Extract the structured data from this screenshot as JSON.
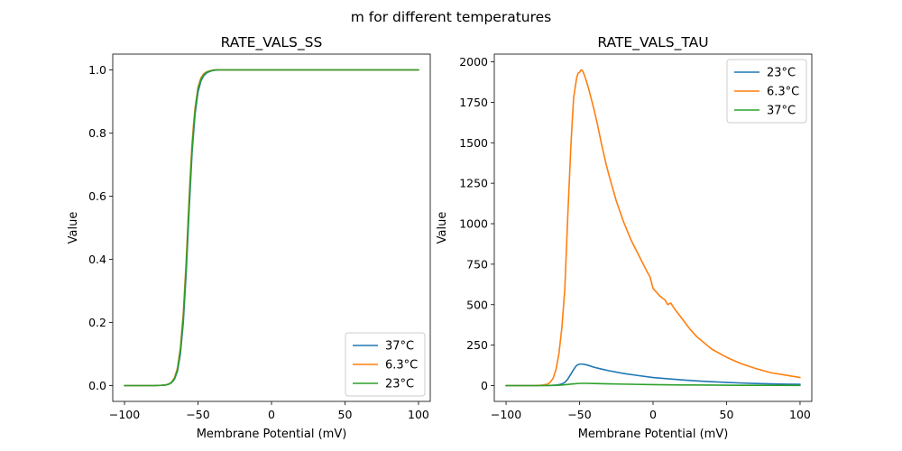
{
  "chart_data": {
    "suptitle": "m for different temperatures",
    "charts": [
      {
        "type": "line",
        "title": "RATE_VALS_SS",
        "xlabel": "Membrane Potential (mV)",
        "ylabel": "Value",
        "xlim": [
          -108,
          108
        ],
        "ylim": [
          -0.05,
          1.05
        ],
        "xticks": [
          -100,
          -50,
          0,
          50,
          100
        ],
        "xtick_labels": [
          "−100",
          "−50",
          "0",
          "50",
          "100"
        ],
        "yticks": [
          0.0,
          0.2,
          0.4,
          0.6,
          0.8,
          1.0
        ],
        "ytick_labels": [
          "0.0",
          "0.2",
          "0.4",
          "0.6",
          "0.8",
          "1.0"
        ],
        "legend_position": "lower-right",
        "series": [
          {
            "name": "37°C",
            "color": "#1f77b4",
            "x": [
              -100,
              -80,
              -75,
              -72,
              -70,
              -68,
              -66,
              -64,
              -62,
              -60,
              -58,
              -56,
              -55,
              -54,
              -53,
              -52,
              -50,
              -48,
              -46,
              -44,
              -42,
              -40,
              -38,
              -35,
              -30,
              -20,
              0,
              50,
              100
            ],
            "y": [
              0.0,
              0.0,
              0.001,
              0.002,
              0.004,
              0.009,
              0.02,
              0.045,
              0.1,
              0.2,
              0.36,
              0.56,
              0.65,
              0.74,
              0.8,
              0.86,
              0.93,
              0.965,
              0.982,
              0.991,
              0.995,
              0.998,
              0.999,
              1.0,
              1.0,
              1.0,
              1.0,
              1.0,
              1.0
            ]
          },
          {
            "name": "6.3°C",
            "color": "#ff7f0e",
            "x": [
              -100,
              -80,
              -75,
              -72,
              -70,
              -68,
              -66,
              -64,
              -62,
              -60,
              -58,
              -56,
              -55,
              -54,
              -53,
              -52,
              -50,
              -48,
              -46,
              -44,
              -42,
              -40,
              -38,
              -35,
              -30,
              -20,
              0,
              50,
              100
            ],
            "y": [
              0.0,
              0.0,
              0.001,
              0.002,
              0.005,
              0.011,
              0.025,
              0.055,
              0.12,
              0.23,
              0.4,
              0.6,
              0.69,
              0.77,
              0.83,
              0.88,
              0.945,
              0.975,
              0.988,
              0.994,
              0.997,
              0.999,
              1.0,
              1.0,
              1.0,
              1.0,
              1.0,
              1.0,
              1.0
            ]
          },
          {
            "name": "23°C",
            "color": "#2ca02c",
            "x": [
              -100,
              -80,
              -75,
              -72,
              -70,
              -68,
              -66,
              -64,
              -62,
              -60,
              -58,
              -56,
              -55,
              -54,
              -53,
              -52,
              -50,
              -48,
              -46,
              -44,
              -42,
              -40,
              -38,
              -35,
              -30,
              -20,
              0,
              50,
              100
            ],
            "y": [
              0.0,
              0.0,
              0.001,
              0.002,
              0.0045,
              0.01,
              0.022,
              0.05,
              0.11,
              0.215,
              0.38,
              0.58,
              0.67,
              0.755,
              0.815,
              0.87,
              0.94,
              0.97,
              0.985,
              0.993,
              0.996,
              0.999,
              1.0,
              1.0,
              1.0,
              1.0,
              1.0,
              1.0,
              1.0
            ]
          }
        ]
      },
      {
        "type": "line",
        "title": "RATE_VALS_TAU",
        "xlabel": "Membrane Potential (mV)",
        "ylabel": "Value",
        "xlim": [
          -108,
          108
        ],
        "ylim": [
          -97.5,
          2047.5
        ],
        "xticks": [
          -100,
          -50,
          0,
          50,
          100
        ],
        "xtick_labels": [
          "−100",
          "−50",
          "0",
          "50",
          "100"
        ],
        "yticks": [
          0,
          250,
          500,
          750,
          1000,
          1250,
          1500,
          1750,
          2000
        ],
        "ytick_labels": [
          "0",
          "250",
          "500",
          "750",
          "1000",
          "1250",
          "1500",
          "1750",
          "2000"
        ],
        "legend_position": "top-right",
        "series": [
          {
            "name": "23°C",
            "color": "#1f77b4",
            "x": [
              -100,
              -80,
              -70,
              -65,
              -62,
              -60,
              -58,
              -56,
              -54,
              -52,
              -50,
              -48,
              -46,
              -44,
              -40,
              -35,
              -30,
              -20,
              -10,
              0,
              10,
              20,
              30,
              40,
              50,
              60,
              70,
              80,
              90,
              100
            ],
            "y": [
              0,
              0,
              1,
              4,
              10,
              20,
              40,
              70,
              100,
              125,
              133,
              133,
              130,
              125,
              113,
              102,
              92,
              75,
              62,
              50,
              42,
              35,
              29,
              24,
              20,
              16,
              13,
              11,
              9,
              8
            ]
          },
          {
            "name": "6.3°C",
            "color": "#ff7f0e",
            "x": [
              -100,
              -80,
              -75,
              -72,
              -70,
              -68,
              -66,
              -64,
              -62,
              -60,
              -58,
              -56,
              -55,
              -54,
              -53,
              -52,
              -51,
              -50,
              -49,
              -48,
              -47,
              -46,
              -45,
              -44,
              -42,
              -40,
              -38,
              -35,
              -32,
              -30,
              -25,
              -20,
              -15,
              -10,
              -5,
              -2,
              0,
              2,
              5,
              8,
              10,
              12,
              15,
              20,
              25,
              30,
              40,
              50,
              60,
              70,
              80,
              90,
              100
            ],
            "y": [
              0,
              0,
              3,
              8,
              20,
              45,
              100,
              200,
              360,
              600,
              1050,
              1460,
              1630,
              1780,
              1840,
              1900,
              1930,
              1935,
              1950,
              1945,
              1925,
              1900,
              1870,
              1840,
              1770,
              1700,
              1620,
              1490,
              1370,
              1300,
              1140,
              1010,
              900,
              810,
              720,
              670,
              600,
              580,
              550,
              530,
              500,
              510,
              470,
              410,
              350,
              300,
              225,
              175,
              135,
              105,
              80,
              65,
              50
            ]
          },
          {
            "name": "37°C",
            "color": "#2ca02c",
            "x": [
              -100,
              -80,
              -70,
              -65,
              -60,
              -55,
              -50,
              -45,
              -40,
              -30,
              -20,
              0,
              20,
              40,
              60,
              80,
              100
            ],
            "y": [
              0,
              0,
              1,
              2,
              5,
              10,
              14,
              14,
              13,
              11,
              9,
              6,
              4,
              3,
              2,
              1.5,
              1
            ]
          }
        ]
      }
    ]
  }
}
